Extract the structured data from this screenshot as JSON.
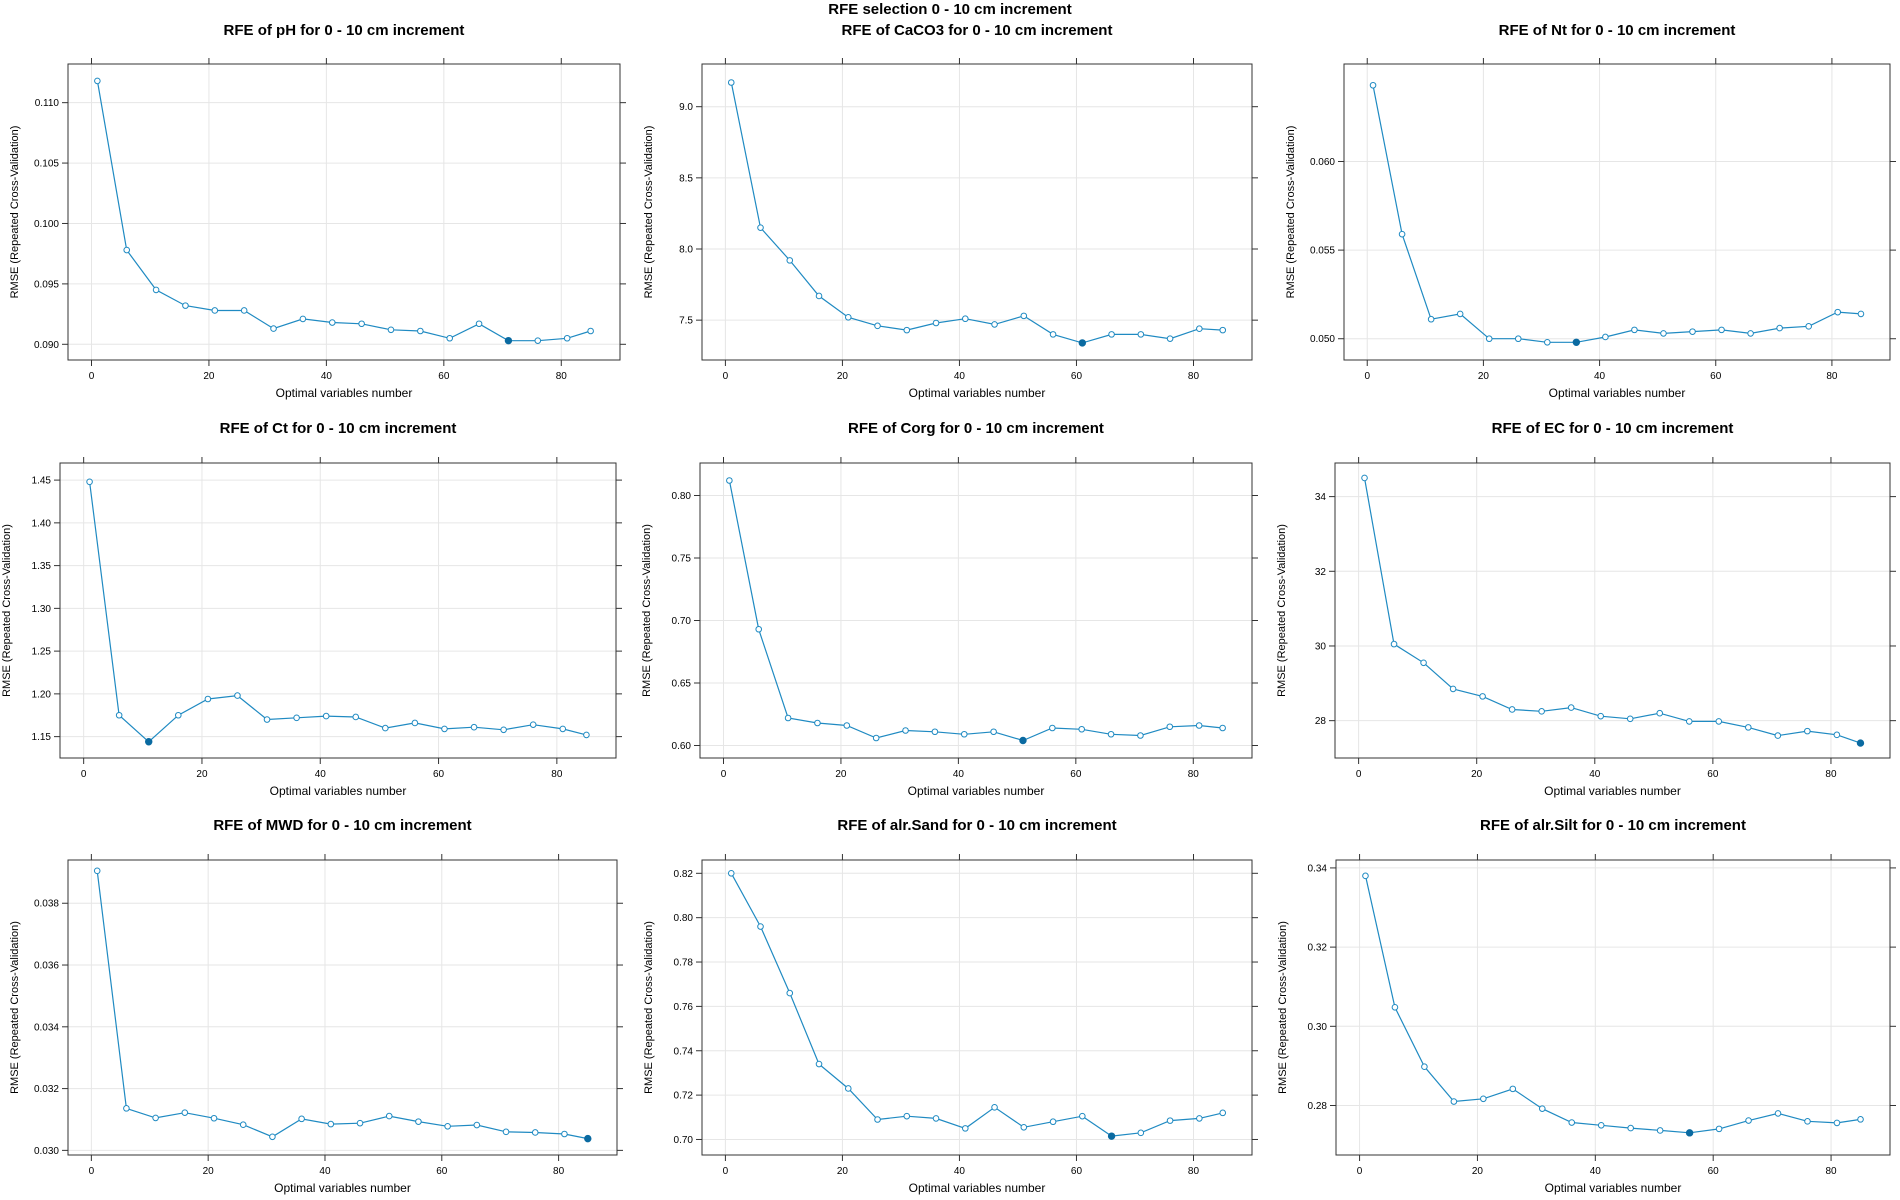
{
  "page": {
    "title": "RFE selection 0 - 10 cm increment"
  },
  "colors": {
    "line": "#1f8ac2",
    "point_stroke": "#1f8ac2",
    "selected_fill": "#0a6aa1",
    "frame": "#333333",
    "grid": "#e6e6e6"
  },
  "chart_data": [
    {
      "type": "line",
      "title": "RFE of pH for 0 - 10 cm increment",
      "xlabel": "Optimal variables number",
      "ylabel": "RMSE (Repeated Cross-Validation)",
      "xlim": [
        -4,
        90
      ],
      "ylim": [
        0.0887,
        0.1132
      ],
      "xticks": [
        0,
        20,
        40,
        60,
        80
      ],
      "yticks": [
        0.09,
        0.095,
        0.1,
        0.105,
        0.11
      ],
      "ytick_labels": [
        "0.090",
        "0.095",
        "0.100",
        "0.105",
        "0.110"
      ],
      "x": [
        1,
        6,
        11,
        16,
        21,
        26,
        31,
        36,
        41,
        46,
        51,
        56,
        61,
        66,
        71,
        76,
        81,
        85
      ],
      "y": [
        0.1118,
        0.0978,
        0.0945,
        0.0932,
        0.0928,
        0.0928,
        0.0913,
        0.0921,
        0.0918,
        0.0917,
        0.0912,
        0.0911,
        0.0905,
        0.0917,
        0.0903,
        0.0903,
        0.0905,
        0.0911
      ],
      "selected_index": 14,
      "grid": true
    },
    {
      "type": "line",
      "title": "RFE of CaCO3 for 0 - 10 cm increment",
      "xlabel": "Optimal variables number",
      "ylabel": "RMSE (Repeated Cross-Validation)",
      "xlim": [
        -4,
        90
      ],
      "ylim": [
        7.22,
        9.3
      ],
      "xticks": [
        0,
        20,
        40,
        60,
        80
      ],
      "yticks": [
        7.5,
        8.0,
        8.5,
        9.0
      ],
      "ytick_labels": [
        "7.5",
        "8.0",
        "8.5",
        "9.0"
      ],
      "x": [
        1,
        6,
        11,
        16,
        21,
        26,
        31,
        36,
        41,
        46,
        51,
        56,
        61,
        66,
        71,
        76,
        81,
        85
      ],
      "y": [
        9.17,
        8.15,
        7.92,
        7.67,
        7.52,
        7.46,
        7.43,
        7.48,
        7.51,
        7.47,
        7.53,
        7.4,
        7.34,
        7.4,
        7.4,
        7.37,
        7.44,
        7.43
      ],
      "selected_index": 12,
      "grid": true
    },
    {
      "type": "line",
      "title": "RFE of Nt for 0 - 10 cm increment",
      "xlabel": "Optimal variables number",
      "ylabel": "RMSE (Repeated Cross-Validation)",
      "xlim": [
        -4,
        90
      ],
      "ylim": [
        0.0488,
        0.0655
      ],
      "xticks": [
        0,
        20,
        40,
        60,
        80
      ],
      "yticks": [
        0.05,
        0.055,
        0.06
      ],
      "ytick_labels": [
        "0.050",
        "0.055",
        "0.060"
      ],
      "x": [
        1,
        6,
        11,
        16,
        21,
        26,
        31,
        36,
        41,
        46,
        51,
        56,
        61,
        66,
        71,
        76,
        81,
        85
      ],
      "y": [
        0.0643,
        0.0559,
        0.0511,
        0.0514,
        0.05,
        0.05,
        0.0498,
        0.0498,
        0.0501,
        0.0505,
        0.0503,
        0.0504,
        0.0505,
        0.0503,
        0.0506,
        0.0507,
        0.0515,
        0.0514
      ],
      "selected_index": 7,
      "grid": true
    },
    {
      "type": "line",
      "title": "RFE of Ct for 0 - 10 cm increment",
      "xlabel": "Optimal variables number",
      "ylabel": "RMSE (Repeated Cross-Validation)",
      "xlim": [
        -4,
        90
      ],
      "ylim": [
        1.125,
        1.47
      ],
      "xticks": [
        0,
        20,
        40,
        60,
        80
      ],
      "yticks": [
        1.15,
        1.2,
        1.25,
        1.3,
        1.35,
        1.4,
        1.45
      ],
      "ytick_labels": [
        "1.15",
        "1.20",
        "1.25",
        "1.30",
        "1.35",
        "1.40",
        "1.45"
      ],
      "x": [
        1,
        6,
        11,
        16,
        21,
        26,
        31,
        36,
        41,
        46,
        51,
        56,
        61,
        66,
        71,
        76,
        81,
        85
      ],
      "y": [
        1.448,
        1.175,
        1.144,
        1.175,
        1.194,
        1.198,
        1.17,
        1.172,
        1.174,
        1.173,
        1.16,
        1.166,
        1.159,
        1.161,
        1.158,
        1.164,
        1.159,
        1.152
      ],
      "selected_index": 2,
      "grid": true
    },
    {
      "type": "line",
      "title": "RFE of Corg for 0 - 10 cm increment",
      "xlabel": "Optimal variables number",
      "ylabel": "RMSE (Repeated Cross-Validation)",
      "xlim": [
        -4,
        90
      ],
      "ylim": [
        0.59,
        0.826
      ],
      "xticks": [
        0,
        20,
        40,
        60,
        80
      ],
      "yticks": [
        0.6,
        0.65,
        0.7,
        0.75,
        0.8
      ],
      "ytick_labels": [
        "0.60",
        "0.65",
        "0.70",
        "0.75",
        "0.80"
      ],
      "x": [
        1,
        6,
        11,
        16,
        21,
        26,
        31,
        36,
        41,
        46,
        51,
        56,
        61,
        66,
        71,
        76,
        81,
        85
      ],
      "y": [
        0.812,
        0.693,
        0.622,
        0.618,
        0.616,
        0.606,
        0.612,
        0.611,
        0.609,
        0.611,
        0.604,
        0.614,
        0.613,
        0.609,
        0.608,
        0.615,
        0.616,
        0.614
      ],
      "selected_index": 10,
      "grid": true
    },
    {
      "type": "line",
      "title": "RFE of EC for 0 - 10 cm increment",
      "xlabel": "Optimal variables number",
      "ylabel": "RMSE (Repeated Cross-Validation)",
      "xlim": [
        -4,
        90
      ],
      "ylim": [
        27.0,
        34.9
      ],
      "xticks": [
        0,
        20,
        40,
        60,
        80
      ],
      "yticks": [
        28,
        30,
        32,
        34
      ],
      "ytick_labels": [
        "28",
        "30",
        "32",
        "34"
      ],
      "x": [
        1,
        6,
        11,
        16,
        21,
        26,
        31,
        36,
        41,
        46,
        51,
        56,
        61,
        66,
        71,
        76,
        81,
        85
      ],
      "y": [
        34.5,
        30.05,
        29.55,
        28.85,
        28.65,
        28.3,
        28.25,
        28.35,
        28.12,
        28.05,
        28.2,
        27.98,
        27.98,
        27.82,
        27.6,
        27.72,
        27.62,
        27.4
      ],
      "selected_index": 17,
      "grid": true
    },
    {
      "type": "line",
      "title": "RFE of MWD for 0 - 10 cm increment",
      "xlabel": "Optimal variables number",
      "ylabel": "RMSE (Repeated Cross-Validation)",
      "xlim": [
        -4,
        90
      ],
      "ylim": [
        0.02985,
        0.0394
      ],
      "xticks": [
        0,
        20,
        40,
        60,
        80
      ],
      "yticks": [
        0.03,
        0.032,
        0.034,
        0.036,
        0.038
      ],
      "ytick_labels": [
        "0.030",
        "0.032",
        "0.034",
        "0.036",
        "0.038"
      ],
      "x": [
        1,
        6,
        11,
        16,
        21,
        26,
        31,
        36,
        41,
        46,
        51,
        56,
        61,
        66,
        71,
        76,
        81,
        85
      ],
      "y": [
        0.03905,
        0.03136,
        0.03105,
        0.03122,
        0.03104,
        0.03083,
        0.03044,
        0.03102,
        0.03085,
        0.03088,
        0.03111,
        0.03093,
        0.03078,
        0.03082,
        0.0306,
        0.03058,
        0.03053,
        0.03038
      ],
      "selected_index": 17,
      "grid": true
    },
    {
      "type": "line",
      "title": "RFE of alr.Sand for 0 - 10 cm increment",
      "xlabel": "Optimal variables number",
      "ylabel": "RMSE (Repeated Cross-Validation)",
      "xlim": [
        -4,
        90
      ],
      "ylim": [
        0.693,
        0.826
      ],
      "xticks": [
        0,
        20,
        40,
        60,
        80
      ],
      "yticks": [
        0.7,
        0.72,
        0.74,
        0.76,
        0.78,
        0.8,
        0.82
      ],
      "ytick_labels": [
        "0.70",
        "0.72",
        "0.74",
        "0.76",
        "0.78",
        "0.80",
        "0.82"
      ],
      "x": [
        1,
        6,
        11,
        16,
        21,
        26,
        31,
        36,
        41,
        46,
        51,
        56,
        61,
        66,
        71,
        76,
        81,
        85
      ],
      "y": [
        0.82,
        0.796,
        0.766,
        0.734,
        0.723,
        0.709,
        0.7105,
        0.7095,
        0.705,
        0.7145,
        0.7055,
        0.708,
        0.7105,
        0.7015,
        0.703,
        0.7085,
        0.7095,
        0.712
      ],
      "selected_index": 13,
      "grid": true
    },
    {
      "type": "line",
      "title": "RFE of alr.Silt for 0 - 10 cm increment",
      "xlabel": "Optimal variables number",
      "ylabel": "RMSE (Repeated Cross-Validation)",
      "xlim": [
        -4,
        90
      ],
      "ylim": [
        0.2675,
        0.342
      ],
      "xticks": [
        0,
        20,
        40,
        60,
        80
      ],
      "yticks": [
        0.28,
        0.3,
        0.32,
        0.34
      ],
      "ytick_labels": [
        "0.28",
        "0.30",
        "0.32",
        "0.34"
      ],
      "x": [
        1,
        6,
        11,
        16,
        21,
        26,
        31,
        36,
        41,
        46,
        51,
        56,
        61,
        66,
        71,
        76,
        81,
        85
      ],
      "y": [
        0.338,
        0.3048,
        0.2898,
        0.281,
        0.2817,
        0.2842,
        0.2792,
        0.2757,
        0.275,
        0.2743,
        0.2737,
        0.2731,
        0.2741,
        0.2762,
        0.278,
        0.276,
        0.2756,
        0.2765
      ],
      "selected_index": 11,
      "grid": true
    }
  ]
}
